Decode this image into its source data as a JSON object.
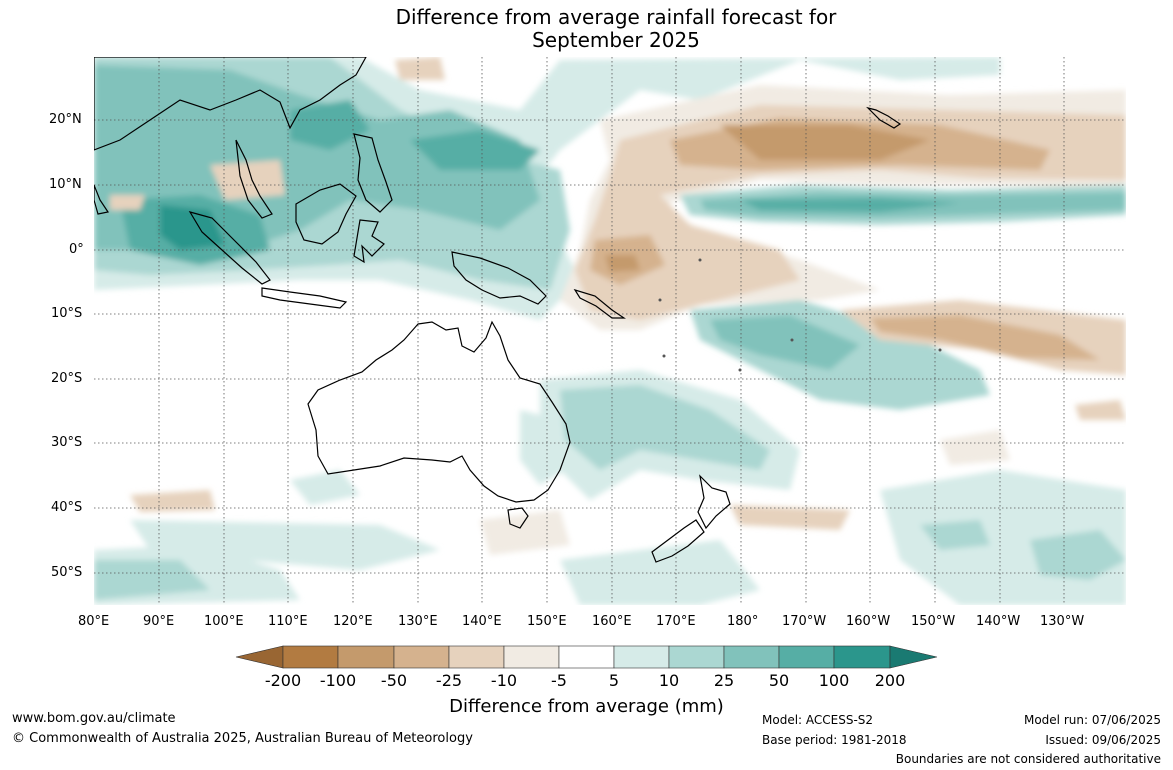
{
  "title": {
    "line1": "Difference from average rainfall forecast for",
    "line2": "September 2025"
  },
  "axes": {
    "lon_labels": [
      "80°E",
      "90°E",
      "100°E",
      "110°E",
      "120°E",
      "130°E",
      "140°E",
      "150°E",
      "160°E",
      "170°E",
      "180°",
      "170°W",
      "160°W",
      "150°W",
      "140°W",
      "130°W"
    ],
    "lat_labels": [
      "20°N",
      "10°N",
      "0°",
      "10°S",
      "20°S",
      "30°S",
      "40°S",
      "50°S"
    ],
    "lon_range": [
      80,
      245
    ],
    "lat_range": [
      -55,
      30
    ]
  },
  "colorbar": {
    "title": "Difference from average (mm)",
    "ticks": [
      "-200",
      "-100",
      "-50",
      "-25",
      "-10",
      "-5",
      "5",
      "10",
      "25",
      "50",
      "100",
      "200"
    ],
    "colors": [
      "#996633",
      "#b27b41",
      "#c49a6c",
      "#d5b28e",
      "#e6d2bd",
      "#f1ebe3",
      "#ffffff",
      "#d6ebe8",
      "#abd7d2",
      "#81c2bb",
      "#56aea5",
      "#2b968c",
      "#1a7a72"
    ]
  },
  "footer": {
    "website": "www.bom.gov.au/climate",
    "copyright": "© Commonwealth of Australia 2025, Australian Bureau of Meteorology",
    "model": "Model: ACCESS-S2",
    "base_period": "Base period: 1981-2018",
    "model_run": "Model run: 07/06/2025",
    "issued": "Issued: 09/06/2025",
    "disclaimer": "Boundaries are not considered authoritative"
  },
  "map_regions": [
    {
      "region": "Maritime Continent / Indian Ocean wet band",
      "category": "25 to 100"
    },
    {
      "region": "Central-west Pacific north of equator",
      "category": "-10 to -50"
    },
    {
      "region": "Equatorial central Pacific 10°N band",
      "category": "25 to 100"
    },
    {
      "region": "South Pacific south-east of Solomon Islands",
      "category": "25 to 50"
    },
    {
      "region": "Central South Pacific 15°S band",
      "category": "-10 to -25"
    },
    {
      "region": "Eastern Australia / Tasman Sea",
      "category": "10 to 50"
    }
  ]
}
